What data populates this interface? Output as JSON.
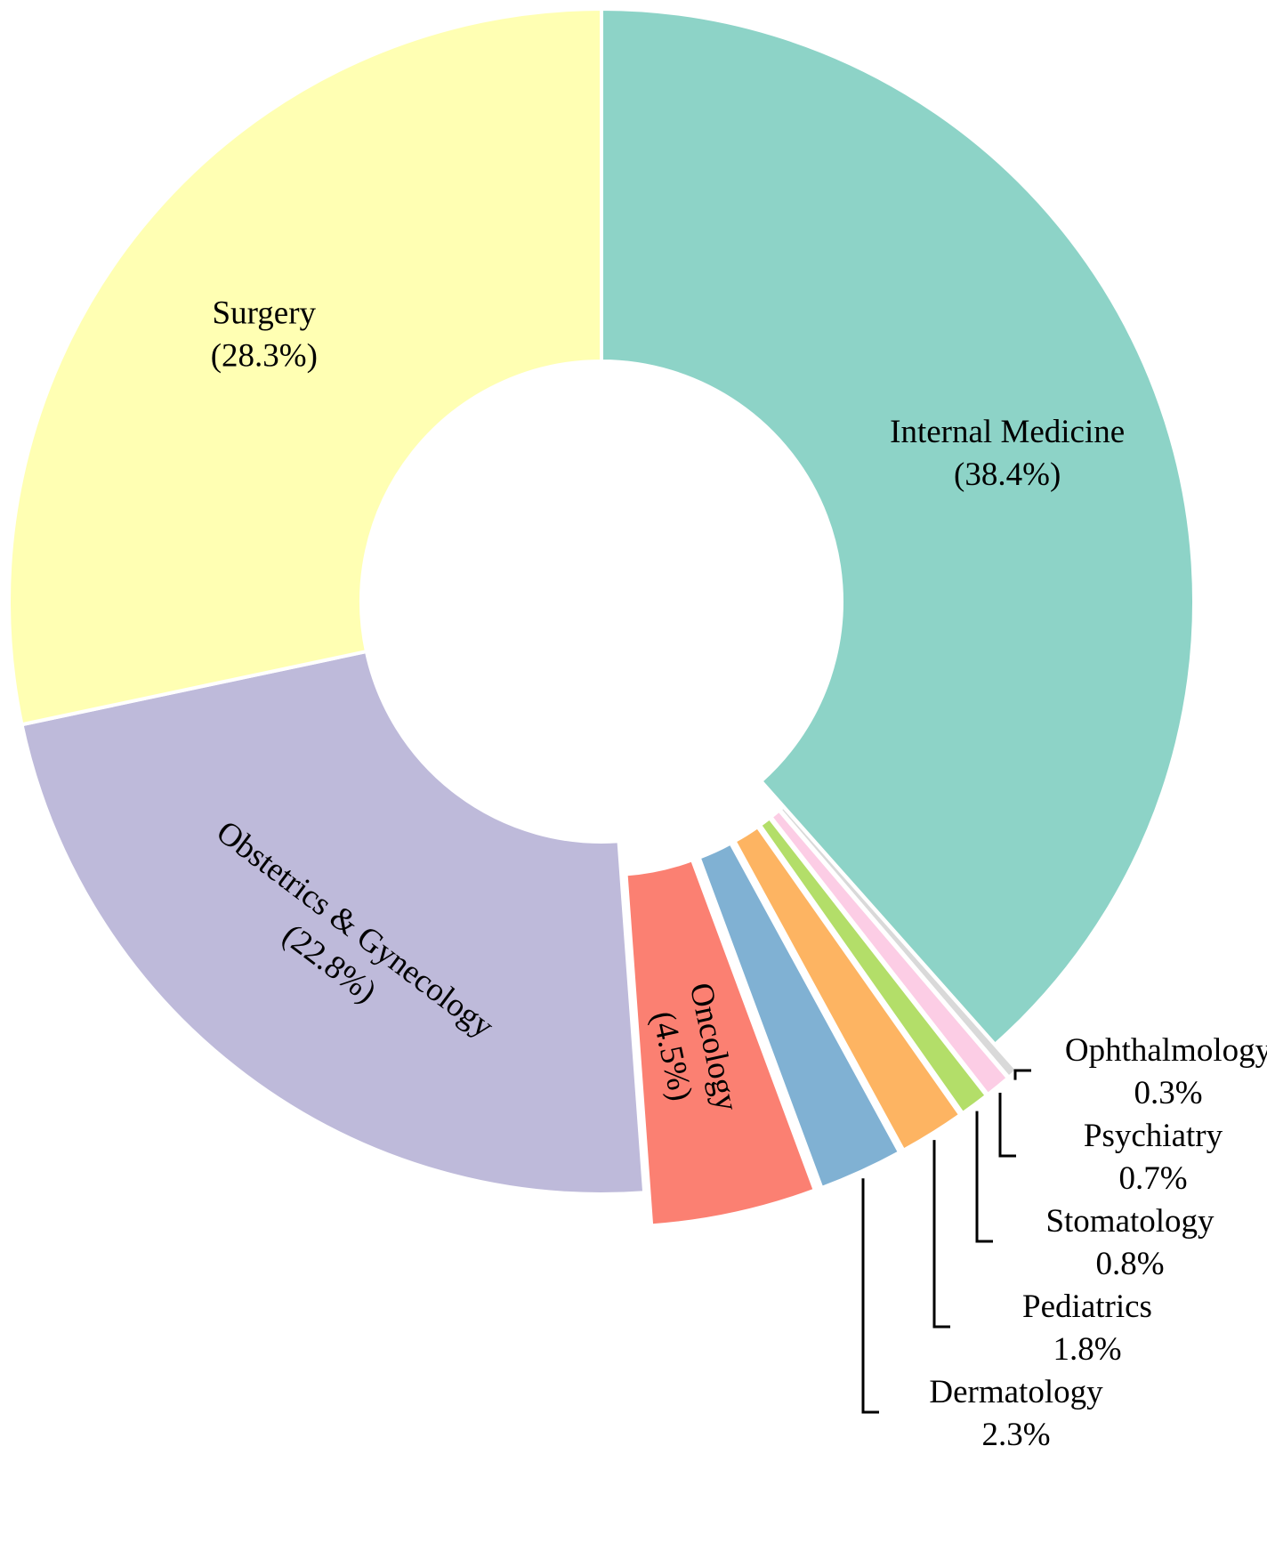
{
  "chart_data": {
    "type": "pie",
    "variant": "donut",
    "title": "",
    "slices": [
      {
        "label": "Internal Medicine",
        "value": 38.4,
        "percent_text": "(38.4%)",
        "color": "#8dd3c7",
        "label_style": "inside",
        "explode": false
      },
      {
        "label": "Ophthalmology",
        "value": 0.3,
        "percent_text": "0.3%",
        "color": "#d9d9d9",
        "label_style": "callout",
        "explode": true
      },
      {
        "label": "Psychiatry",
        "value": 0.7,
        "percent_text": "0.7%",
        "color": "#fccde5",
        "label_style": "callout",
        "explode": true
      },
      {
        "label": "Stomatology",
        "value": 0.8,
        "percent_text": "0.8%",
        "color": "#b3de69",
        "label_style": "callout",
        "explode": true
      },
      {
        "label": "Pediatrics",
        "value": 1.8,
        "percent_text": "1.8%",
        "color": "#fdb462",
        "label_style": "callout",
        "explode": true
      },
      {
        "label": "Dermatology",
        "value": 2.3,
        "percent_text": "2.3%",
        "color": "#80b1d3",
        "label_style": "callout",
        "explode": true
      },
      {
        "label": "Oncology",
        "value": 4.5,
        "percent_text": "(4.5%)",
        "color": "#fb8072",
        "label_style": "inside-radial",
        "explode": true
      },
      {
        "label": "Obstetrics & Gynecology",
        "value": 22.8,
        "percent_text": "(22.8%)",
        "color": "#bebada",
        "label_style": "inside-tangent",
        "explode": false
      },
      {
        "label": "Surgery",
        "value": 28.3,
        "percent_text": "(28.3%)",
        "color": "#ffffb3",
        "label_style": "inside",
        "explode": false
      }
    ],
    "start_angle": "12 o'clock",
    "direction": "clockwise",
    "legend": "none"
  }
}
